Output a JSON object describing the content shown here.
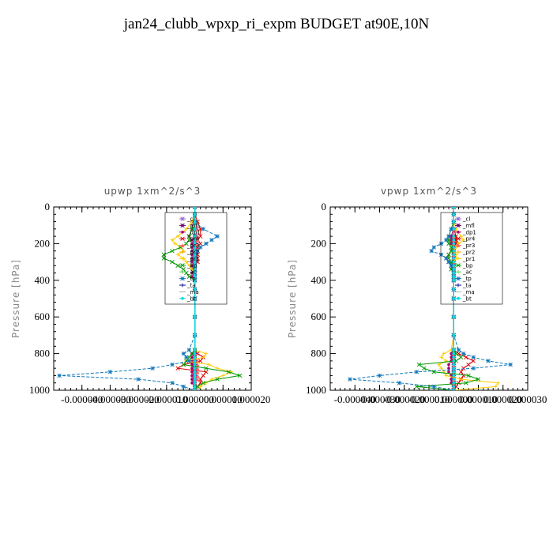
{
  "page": {
    "title": "jan24_clubb_wpxp_ri_expm  BUDGET at90E,10N"
  },
  "chart_data": [
    {
      "type": "line",
      "title": "upwp   1xm^2/s^3",
      "ylabel": "Pressure [hPa]",
      "xlabel": "",
      "xlim": [
        -5e-05,
        2e-05
      ],
      "ylim": [
        1000,
        0
      ],
      "xticks": [
        -4e-05,
        -3e-05,
        -2e-05,
        -1e-05,
        0.0,
        1e-05,
        2e-05
      ],
      "xtick_labels": [
        "-0.000040",
        "-0.000030",
        "-0.000020",
        "-0.000010",
        "0.000000",
        "0.000010",
        "0.000020"
      ],
      "yticks": [
        0,
        200,
        400,
        600,
        800,
        1000
      ],
      "ytick_labels": [
        "0",
        "200",
        "400",
        "600",
        "800",
        "1000"
      ],
      "legend_position": "top-right",
      "p": [
        0,
        40,
        80,
        120,
        160,
        180,
        200,
        220,
        240,
        260,
        280,
        300,
        320,
        340,
        360,
        380,
        400,
        450,
        500,
        600,
        700,
        780,
        800,
        820,
        840,
        860,
        880,
        900,
        920,
        940,
        960,
        980,
        1000
      ],
      "series": [
        {
          "name": "_cl",
          "color": "#9966cc",
          "x": [
            0,
            0,
            0,
            0,
            0,
            0,
            0,
            0,
            0,
            0,
            0,
            0,
            0,
            0,
            0,
            0,
            0,
            0,
            0,
            0,
            0,
            0,
            0,
            0,
            0,
            0,
            0,
            0,
            0,
            0,
            0,
            0,
            0
          ]
        },
        {
          "name": "_mfl",
          "color": "#660066",
          "x": [
            0,
            0,
            0,
            0,
            0,
            0,
            0,
            0,
            0,
            0,
            0,
            0,
            0,
            0,
            0,
            0,
            0,
            0,
            0,
            0,
            0,
            0,
            0,
            0,
            0,
            0,
            0,
            0,
            0,
            0,
            0,
            0,
            0
          ]
        },
        {
          "name": "_dp1",
          "color": "#aa0066",
          "x": [
            0,
            0,
            -1e-06,
            -1e-06,
            -2e-06,
            -1e-06,
            -1e-06,
            -1e-06,
            -1e-06,
            -1e-06,
            -1e-06,
            -1e-06,
            -1e-06,
            -1e-06,
            -1e-06,
            -1e-06,
            0,
            0,
            0,
            0,
            0,
            0,
            -1e-06,
            -1e-06,
            -1e-06,
            -1e-06,
            -1e-06,
            -1e-06,
            -1e-06,
            -1e-06,
            -1e-06,
            0,
            0
          ]
        },
        {
          "name": "_pr4",
          "color": "#dd0000",
          "x": [
            0,
            0,
            1e-06,
            2e-06,
            2e-06,
            1e-06,
            2e-06,
            1e-06,
            1e-06,
            1e-06,
            1e-06,
            1e-06,
            0,
            0,
            0,
            0,
            0,
            0,
            0,
            0,
            0,
            0,
            1e-06,
            3e-06,
            2e-06,
            -4e-06,
            -6e-06,
            4e-06,
            3e-06,
            2e-06,
            2e-06,
            1e-06,
            0
          ]
        },
        {
          "name": "_pr3",
          "color": "#ff6666",
          "x": [
            0,
            0,
            0,
            1e-06,
            1e-06,
            1e-06,
            1e-06,
            0,
            0,
            0,
            0,
            0,
            0,
            0,
            0,
            0,
            0,
            0,
            0,
            0,
            0,
            0,
            0,
            0,
            1e-06,
            1e-06,
            1e-06,
            1e-06,
            1e-06,
            1e-06,
            0,
            0,
            0
          ]
        },
        {
          "name": "_pr2",
          "color": "#ffaa00",
          "x": [
            0,
            0,
            0,
            0,
            0,
            0,
            0,
            0,
            0,
            0,
            0,
            0,
            0,
            0,
            0,
            0,
            0,
            0,
            0,
            0,
            0,
            0,
            0,
            0,
            0,
            0,
            0,
            0,
            0,
            0,
            0,
            0,
            0
          ]
        },
        {
          "name": "_pr1",
          "color": "#ffcc00",
          "x": [
            0,
            0,
            -1e-06,
            -3e-06,
            -6e-06,
            -8e-06,
            -7e-06,
            -5e-06,
            -4e-06,
            -6e-06,
            -4e-06,
            -3e-06,
            -2e-06,
            -1e-06,
            0,
            0,
            0,
            0,
            0,
            0,
            0,
            0,
            4e-06,
            3e-06,
            -3e-06,
            5e-06,
            8e-06,
            1.3e-05,
            1e-05,
            6e-06,
            4e-06,
            2e-06,
            0
          ]
        },
        {
          "name": "_bp",
          "color": "#009900",
          "x": [
            0,
            0,
            0,
            -1e-06,
            -2e-06,
            -2e-06,
            -3e-06,
            -5e-06,
            -8e-06,
            -1.1e-05,
            -1.1e-05,
            -8e-06,
            -6e-06,
            -4e-06,
            -3e-06,
            -2e-06,
            0,
            0,
            0,
            0,
            0,
            0,
            -1e-06,
            -2e-06,
            -3e-06,
            -4e-06,
            4e-06,
            1.2e-05,
            1.6e-05,
            8e-06,
            3e-06,
            1e-06,
            0
          ]
        },
        {
          "name": "_ac",
          "color": "#66cc66",
          "x": [
            0,
            0,
            0,
            0,
            0,
            0,
            0,
            0,
            0,
            0,
            0,
            0,
            0,
            0,
            0,
            0,
            0,
            0,
            0,
            0,
            0,
            0,
            0,
            0,
            0,
            0,
            0,
            0,
            0,
            0,
            0,
            0,
            0
          ]
        },
        {
          "name": "_tp",
          "color": "#1177bb",
          "x": [
            0,
            0,
            0,
            3e-06,
            8e-06,
            6e-06,
            4e-06,
            2e-06,
            1e-06,
            0,
            0,
            0,
            0,
            0,
            0,
            0,
            0,
            0,
            0,
            0,
            0,
            -2e-06,
            -4e-06,
            -3e-06,
            -2e-06,
            -8e-06,
            -1.5e-05,
            -3e-05,
            -4.8e-05,
            -2e-05,
            -8e-06,
            -4e-06,
            0
          ]
        },
        {
          "name": "_ta",
          "color": "#000099",
          "x": [
            0,
            0,
            0,
            0,
            0,
            0,
            0,
            0,
            0,
            0,
            0,
            0,
            0,
            0,
            0,
            0,
            0,
            0,
            0,
            0,
            0,
            0,
            0,
            0,
            0,
            0,
            0,
            0,
            0,
            0,
            0,
            0,
            0
          ]
        },
        {
          "name": "_ma",
          "color": "#aaaaaa",
          "x": [
            0,
            0,
            0,
            0,
            0,
            0,
            0,
            0,
            0,
            0,
            0,
            0,
            0,
            0,
            0,
            0,
            0,
            0,
            0,
            0,
            0,
            0,
            0,
            0,
            0,
            0,
            0,
            0,
            0,
            0,
            0,
            0,
            0
          ]
        },
        {
          "name": "_bt",
          "color": "#00dddd",
          "x": [
            0,
            0,
            0,
            0,
            0,
            0,
            0,
            0,
            0,
            0,
            0,
            0,
            0,
            0,
            0,
            0,
            0,
            0,
            0,
            0,
            0,
            0,
            0,
            0,
            0,
            0,
            0,
            0,
            0,
            0,
            0,
            0,
            0
          ]
        }
      ]
    },
    {
      "type": "line",
      "title": "vpwp   1xm^2/s^3",
      "ylabel": "Pressure [hPa]",
      "xlabel": "",
      "xlim": [
        -5e-05,
        3e-05
      ],
      "ylim": [
        1000,
        0
      ],
      "xticks": [
        -4e-05,
        -3e-05,
        -2e-05,
        -1e-05,
        0.0,
        1e-05,
        2e-05,
        3e-05
      ],
      "xtick_labels": [
        "-0.000040",
        "-0.000030",
        "-0.000020",
        "-0.000010",
        "0.000000",
        "0.000010",
        "0.000020",
        "0.000030"
      ],
      "yticks": [
        0,
        200,
        400,
        600,
        800,
        1000
      ],
      "ytick_labels": [
        "0",
        "200",
        "400",
        "600",
        "800",
        "1000"
      ],
      "legend_position": "top-right",
      "p": [
        0,
        40,
        80,
        120,
        160,
        180,
        200,
        220,
        240,
        260,
        280,
        300,
        320,
        340,
        360,
        380,
        400,
        450,
        500,
        600,
        700,
        780,
        800,
        820,
        840,
        860,
        880,
        900,
        920,
        940,
        960,
        980,
        1000
      ],
      "series": [
        {
          "name": "_cl",
          "color": "#9966cc",
          "x": [
            0,
            0,
            0,
            0,
            0,
            0,
            0,
            0,
            0,
            0,
            0,
            0,
            0,
            0,
            0,
            0,
            0,
            0,
            0,
            0,
            0,
            0,
            0,
            0,
            0,
            0,
            0,
            0,
            0,
            0,
            0,
            0,
            0
          ]
        },
        {
          "name": "_mfl",
          "color": "#660066",
          "x": [
            0,
            0,
            0,
            0,
            0,
            0,
            0,
            0,
            0,
            0,
            0,
            0,
            0,
            0,
            0,
            0,
            0,
            0,
            0,
            0,
            0,
            0,
            0,
            0,
            0,
            0,
            0,
            0,
            0,
            0,
            0,
            0,
            0
          ]
        },
        {
          "name": "_dp1",
          "color": "#aa0066",
          "x": [
            0,
            0,
            0,
            0,
            -1e-06,
            -1e-06,
            -1e-06,
            0,
            0,
            0,
            0,
            0,
            0,
            0,
            0,
            0,
            0,
            0,
            0,
            0,
            0,
            0,
            -1e-06,
            -1e-06,
            -1e-06,
            -2e-06,
            -2e-06,
            -2e-06,
            -1e-06,
            -1e-06,
            -1e-06,
            0,
            0
          ]
        },
        {
          "name": "_pr4",
          "color": "#dd0000",
          "x": [
            0,
            0,
            0,
            0,
            1e-06,
            1e-06,
            1e-06,
            0,
            -1e-06,
            -2e-06,
            -3e-06,
            -2e-06,
            -1e-06,
            -1e-06,
            0,
            0,
            0,
            0,
            0,
            0,
            0,
            0,
            2e-06,
            5e-06,
            8e-06,
            6e-06,
            4e-06,
            3e-06,
            4e-06,
            3e-06,
            2e-06,
            1e-06,
            0
          ]
        },
        {
          "name": "_pr3",
          "color": "#ff6666",
          "x": [
            0,
            0,
            0,
            0,
            0,
            0,
            0,
            0,
            0,
            0,
            0,
            0,
            0,
            0,
            0,
            0,
            0,
            0,
            0,
            0,
            0,
            0,
            0,
            0,
            0,
            0,
            0,
            0,
            0,
            0,
            0,
            0,
            0
          ]
        },
        {
          "name": "_pr2",
          "color": "#ffaa00",
          "x": [
            0,
            0,
            0,
            0,
            0,
            0,
            0,
            0,
            0,
            0,
            0,
            0,
            0,
            0,
            0,
            0,
            0,
            0,
            0,
            0,
            0,
            0,
            0,
            0,
            0,
            0,
            0,
            0,
            0,
            0,
            0,
            0,
            0
          ]
        },
        {
          "name": "_pr1",
          "color": "#ffcc00",
          "x": [
            0,
            0,
            0,
            1e-06,
            3e-06,
            4e-06,
            2e-06,
            1e-06,
            0,
            1e-06,
            1e-06,
            0,
            0,
            0,
            0,
            0,
            0,
            0,
            0,
            0,
            0,
            -1e-06,
            -4e-06,
            -5e-06,
            -3e-06,
            -6e-06,
            -5e-06,
            -4e-06,
            -3e-06,
            3e-06,
            1.8e-05,
            1.7e-05,
            0
          ]
        },
        {
          "name": "_bp",
          "color": "#009900",
          "x": [
            0,
            0,
            0,
            -1e-06,
            -2e-06,
            -2e-06,
            -2e-06,
            -1e-06,
            -1e-06,
            -2e-06,
            -2e-06,
            -1e-06,
            -1e-06,
            -1e-06,
            0,
            0,
            0,
            0,
            0,
            0,
            0,
            0,
            1e-06,
            3e-06,
            1e-06,
            -1.4e-05,
            -1.2e-05,
            -8e-06,
            6e-06,
            1e-05,
            5e-06,
            -1.5e-05,
            0
          ]
        },
        {
          "name": "_ac",
          "color": "#66cc66",
          "x": [
            0,
            0,
            0,
            0,
            0,
            0,
            0,
            0,
            0,
            0,
            0,
            0,
            0,
            0,
            0,
            0,
            0,
            0,
            0,
            0,
            0,
            0,
            0,
            0,
            0,
            0,
            0,
            0,
            0,
            0,
            0,
            0,
            0
          ]
        },
        {
          "name": "_tp",
          "color": "#1177bb",
          "x": [
            0,
            0,
            0,
            -1e-06,
            -2e-06,
            -3e-06,
            -5e-06,
            -8e-06,
            -9e-06,
            -5e-06,
            -3e-06,
            -2e-06,
            -1e-06,
            0,
            0,
            0,
            0,
            0,
            0,
            0,
            0,
            2e-06,
            4e-06,
            8e-06,
            1.4e-05,
            2.3e-05,
            8e-06,
            -1.5e-05,
            -3e-05,
            -4.2e-05,
            -2.2e-05,
            -8e-06,
            0
          ]
        },
        {
          "name": "_ta",
          "color": "#000099",
          "x": [
            0,
            0,
            0,
            0,
            0,
            0,
            0,
            0,
            0,
            0,
            0,
            0,
            0,
            0,
            0,
            0,
            0,
            0,
            0,
            0,
            0,
            0,
            0,
            0,
            0,
            0,
            0,
            0,
            0,
            0,
            0,
            0,
            0
          ]
        },
        {
          "name": "_ma",
          "color": "#aaaaaa",
          "x": [
            0,
            0,
            0,
            0,
            0,
            0,
            0,
            0,
            0,
            0,
            0,
            0,
            0,
            0,
            0,
            0,
            0,
            0,
            0,
            0,
            0,
            0,
            0,
            0,
            0,
            0,
            0,
            0,
            0,
            0,
            0,
            0,
            0
          ]
        },
        {
          "name": "_bt",
          "color": "#00dddd",
          "x": [
            0,
            0,
            0,
            0,
            0,
            0,
            0,
            0,
            0,
            0,
            0,
            0,
            0,
            0,
            0,
            0,
            0,
            0,
            0,
            0,
            0,
            0,
            0,
            0,
            0,
            0,
            0,
            0,
            0,
            0,
            0,
            0,
            0
          ]
        }
      ]
    }
  ]
}
